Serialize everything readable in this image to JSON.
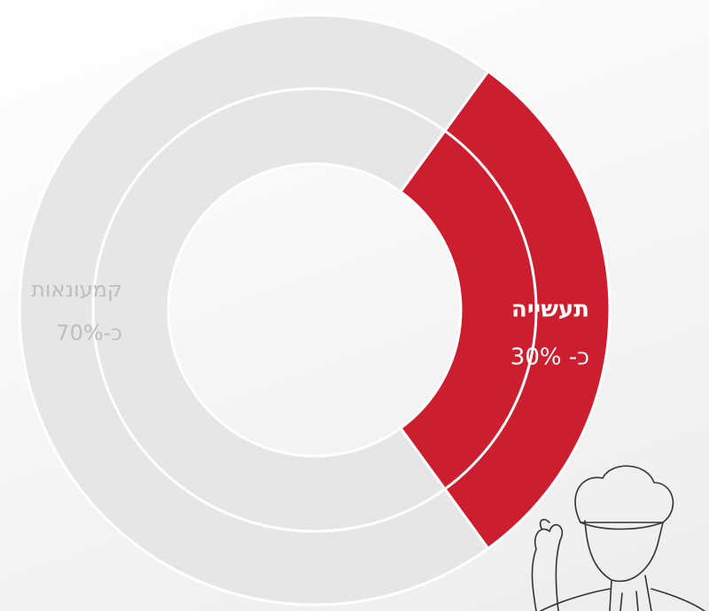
{
  "chart_data": {
    "type": "pie",
    "categories": [
      "תעשייה",
      "קמעונאות"
    ],
    "values": [
      30,
      70
    ],
    "value_labels": [
      "כ- 30%",
      "כ-70%"
    ],
    "colors": [
      "#cc1e2e",
      "#e6e6e6"
    ]
  }
}
